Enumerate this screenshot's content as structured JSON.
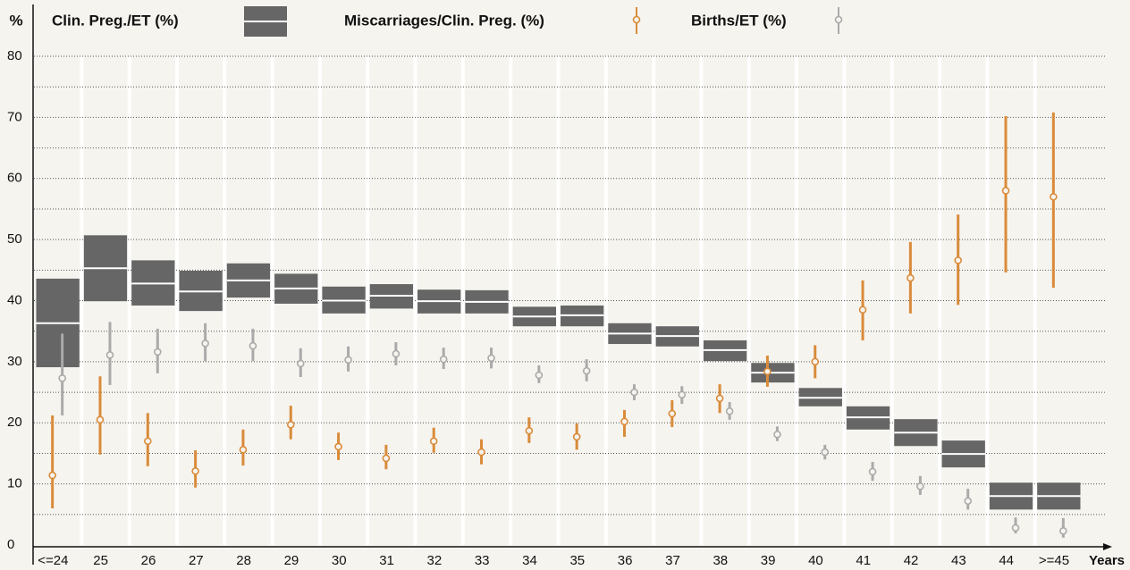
{
  "chart_data": {
    "type": "interval",
    "y_label": "%",
    "x_label": "Years",
    "categories": [
      "<=24",
      "25",
      "26",
      "27",
      "28",
      "29",
      "30",
      "31",
      "32",
      "33",
      "34",
      "35",
      "36",
      "37",
      "38",
      "39",
      "40",
      "41",
      "42",
      "43",
      "44",
      ">=45"
    ],
    "ylim": [
      0,
      80
    ],
    "yticks": [
      0,
      10,
      20,
      30,
      40,
      50,
      60,
      70,
      80
    ],
    "minor_yticks": [
      5,
      15,
      25,
      35,
      45,
      55,
      65,
      75
    ],
    "grid": true,
    "series": [
      {
        "name": "Clin. Preg./ET (%)",
        "style": "box",
        "color": "#666666",
        "values": [
          36.3,
          45.3,
          42.8,
          41.5,
          43.3,
          42,
          40,
          40.8,
          39.9,
          39.8,
          37.4,
          37.6,
          34.6,
          34.2,
          31.9,
          28.2,
          24.1,
          20.9,
          18.4,
          14.9,
          8.0,
          8.0
        ],
        "low": [
          29.1,
          39.9,
          39.2,
          38.3,
          40.5,
          39.5,
          37.9,
          38.7,
          37.9,
          37.9,
          35.8,
          35.8,
          32.9,
          32.5,
          30.1,
          26.6,
          22.7,
          18.9,
          16.2,
          12.7,
          5.8,
          5.8
        ],
        "high": [
          43.6,
          50.7,
          46.6,
          44.9,
          46.1,
          44.4,
          42.3,
          42.7,
          41.8,
          41.7,
          39,
          39.2,
          36.3,
          35.8,
          33.5,
          29.8,
          25.7,
          22.7,
          20.6,
          17.1,
          10.2,
          10.2
        ]
      },
      {
        "name": "Miscarriages/Clin. Preg. (%)",
        "style": "errorbar",
        "color": "#d98b3a",
        "values": [
          11.4,
          20.5,
          17,
          12.1,
          15.6,
          19.7,
          16.1,
          14.2,
          17,
          15.2,
          18.7,
          17.7,
          20.2,
          21.5,
          24,
          28.4,
          30,
          38.5,
          43.7,
          46.6,
          58,
          57
        ],
        "low": [
          6,
          14.8,
          12.9,
          9.4,
          13,
          17.3,
          13.9,
          12.4,
          15.1,
          13.2,
          16.7,
          15.6,
          17.7,
          19.3,
          21.6,
          25.9,
          27.3,
          33.5,
          37.9,
          39.3,
          44.6,
          42.1
        ],
        "high": [
          21.2,
          27.6,
          21.6,
          15.5,
          18.9,
          22.8,
          18.4,
          16.4,
          19.2,
          17.3,
          20.9,
          19.9,
          22.1,
          23.7,
          26.3,
          31,
          32.7,
          43.3,
          49.6,
          54.1,
          70.2,
          70.8
        ]
      },
      {
        "name": "Births/ET (%)",
        "style": "errorbar",
        "color": "#aaaaaa",
        "values": [
          27.3,
          31.1,
          31.6,
          33,
          32.6,
          29.7,
          30.3,
          31.3,
          30.4,
          30.6,
          27.8,
          28.5,
          25,
          24.6,
          21.9,
          18.1,
          15.2,
          12,
          9.6,
          7.2,
          2.8,
          2.3
        ],
        "low": [
          21.2,
          26.2,
          28.1,
          30.1,
          30.1,
          27.5,
          28.4,
          29.4,
          28.8,
          28.9,
          26.5,
          26.8,
          23.7,
          23.1,
          20.5,
          17,
          14,
          10.5,
          8.2,
          5.8,
          1.9,
          1.2
        ],
        "high": [
          34.6,
          36.5,
          35.4,
          36.3,
          35.4,
          32.2,
          32.5,
          33.2,
          32.3,
          32.3,
          29.4,
          30.4,
          26.3,
          26,
          23.4,
          19.4,
          16.4,
          13.6,
          11.3,
          9.2,
          4.5,
          4.4
        ]
      }
    ]
  }
}
